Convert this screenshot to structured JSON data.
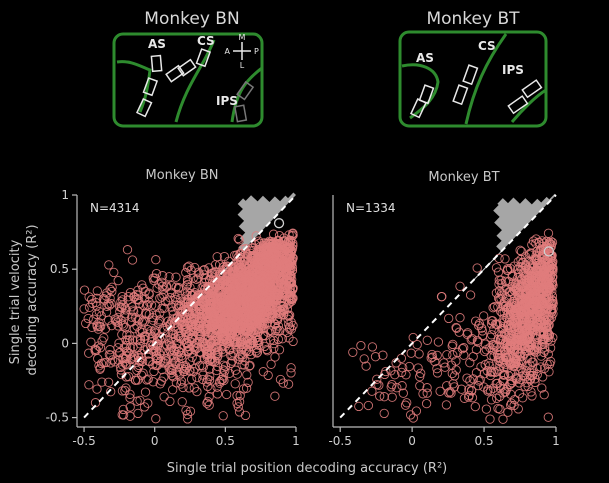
{
  "brain_maps": [
    {
      "title": "Monkey BN",
      "sulci": [
        "AS",
        "CS",
        "IPS"
      ],
      "compass": {
        "up": "M",
        "down": "L",
        "left": "A",
        "right": "P"
      }
    },
    {
      "title": "Monkey BT",
      "sulci": [
        "AS",
        "CS",
        "IPS"
      ]
    }
  ],
  "axes": {
    "xlabel": "Single trial position decoding accuracy (R²)",
    "ylabel": "Single trial velocity decoding accuracy (R²)",
    "ylabel_lines": [
      "Single trial velocity",
      "decoding accuracy (R²)"
    ]
  },
  "colors": {
    "points": "#e07c7c",
    "diagonal": "#ffffff",
    "histogram": "#a6a6a6",
    "cortex": "#2e8b2e",
    "axis": "#bbbbbb",
    "text": "#d0d0d0",
    "background": "#000000"
  },
  "chart_data": [
    {
      "type": "scatter",
      "title": "Monkey BN",
      "annotation": "N=4314",
      "n": 4314,
      "xlim": [
        -0.55,
        1.0
      ],
      "ylim": [
        -0.55,
        1.0
      ],
      "xticks": [
        -0.5,
        0,
        0.5,
        1
      ],
      "xtick_labels": [
        "-0.5",
        "0",
        "0.5",
        "1"
      ],
      "yticks": [
        -0.5,
        0,
        0.5,
        1
      ],
      "ytick_labels": [
        "-0.5",
        "0",
        "0.5",
        "1"
      ],
      "diagonal": [
        [
          -0.5,
          -0.5
        ],
        [
          1.0,
          1.0
        ]
      ],
      "highlight": {
        "x": 0.88,
        "y": 0.81
      },
      "grid": false,
      "diagonal_histogram": {
        "axis": "difference y - x along unity line",
        "bin_centers": [
          -0.6,
          -0.5,
          -0.4,
          -0.3,
          -0.2,
          -0.1,
          0.0,
          0.1,
          0.2,
          0.3
        ],
        "relative_counts": [
          0.15,
          0.3,
          0.55,
          0.8,
          1.0,
          0.9,
          0.65,
          0.4,
          0.2,
          0.1
        ]
      },
      "clusters": [
        {
          "cx": 0.62,
          "cy": 0.28,
          "sx": 0.2,
          "sy": 0.17,
          "rho": 0.45,
          "share": 0.58
        },
        {
          "cx": 0.82,
          "cy": 0.58,
          "sx": 0.1,
          "sy": 0.1,
          "rho": 0.3,
          "share": 0.14
        },
        {
          "cx": 0.28,
          "cy": 0.05,
          "sx": 0.35,
          "sy": 0.3,
          "rho": 0.2,
          "share": 0.2
        },
        {
          "cx": -0.2,
          "cy": 0.1,
          "sx": 0.3,
          "sy": 0.25,
          "rho": 0.0,
          "share": 0.08
        }
      ]
    },
    {
      "type": "scatter",
      "title": "Monkey BT",
      "annotation": "N=1334",
      "n": 1334,
      "xlim": [
        -0.55,
        1.0
      ],
      "ylim": [
        -0.55,
        1.0
      ],
      "xticks": [
        -0.5,
        0,
        0.5,
        1
      ],
      "xtick_labels": [
        "-0.5",
        "0",
        "0.5",
        "1"
      ],
      "diagonal": [
        [
          -0.5,
          -0.5
        ],
        [
          1.0,
          1.0
        ]
      ],
      "highlight": {
        "x": 0.95,
        "y": 0.62
      },
      "grid": false,
      "diagonal_histogram": {
        "axis": "difference y - x along unity line",
        "bin_centers": [
          -0.7,
          -0.6,
          -0.5,
          -0.4,
          -0.3,
          -0.2,
          -0.1,
          0.0,
          0.1,
          0.2
        ],
        "relative_counts": [
          0.2,
          0.4,
          0.7,
          0.95,
          1.0,
          0.8,
          0.55,
          0.3,
          0.15,
          0.05
        ]
      },
      "clusters": [
        {
          "cx": 0.78,
          "cy": 0.15,
          "sx": 0.13,
          "sy": 0.25,
          "rho": 0.4,
          "share": 0.7
        },
        {
          "cx": 0.88,
          "cy": 0.45,
          "sx": 0.07,
          "sy": 0.12,
          "rho": 0.2,
          "share": 0.15
        },
        {
          "cx": 0.4,
          "cy": -0.15,
          "sx": 0.3,
          "sy": 0.22,
          "rho": 0.2,
          "share": 0.1
        },
        {
          "cx": 0.0,
          "cy": -0.2,
          "sx": 0.25,
          "sy": 0.2,
          "rho": 0.3,
          "share": 0.05
        }
      ]
    }
  ]
}
